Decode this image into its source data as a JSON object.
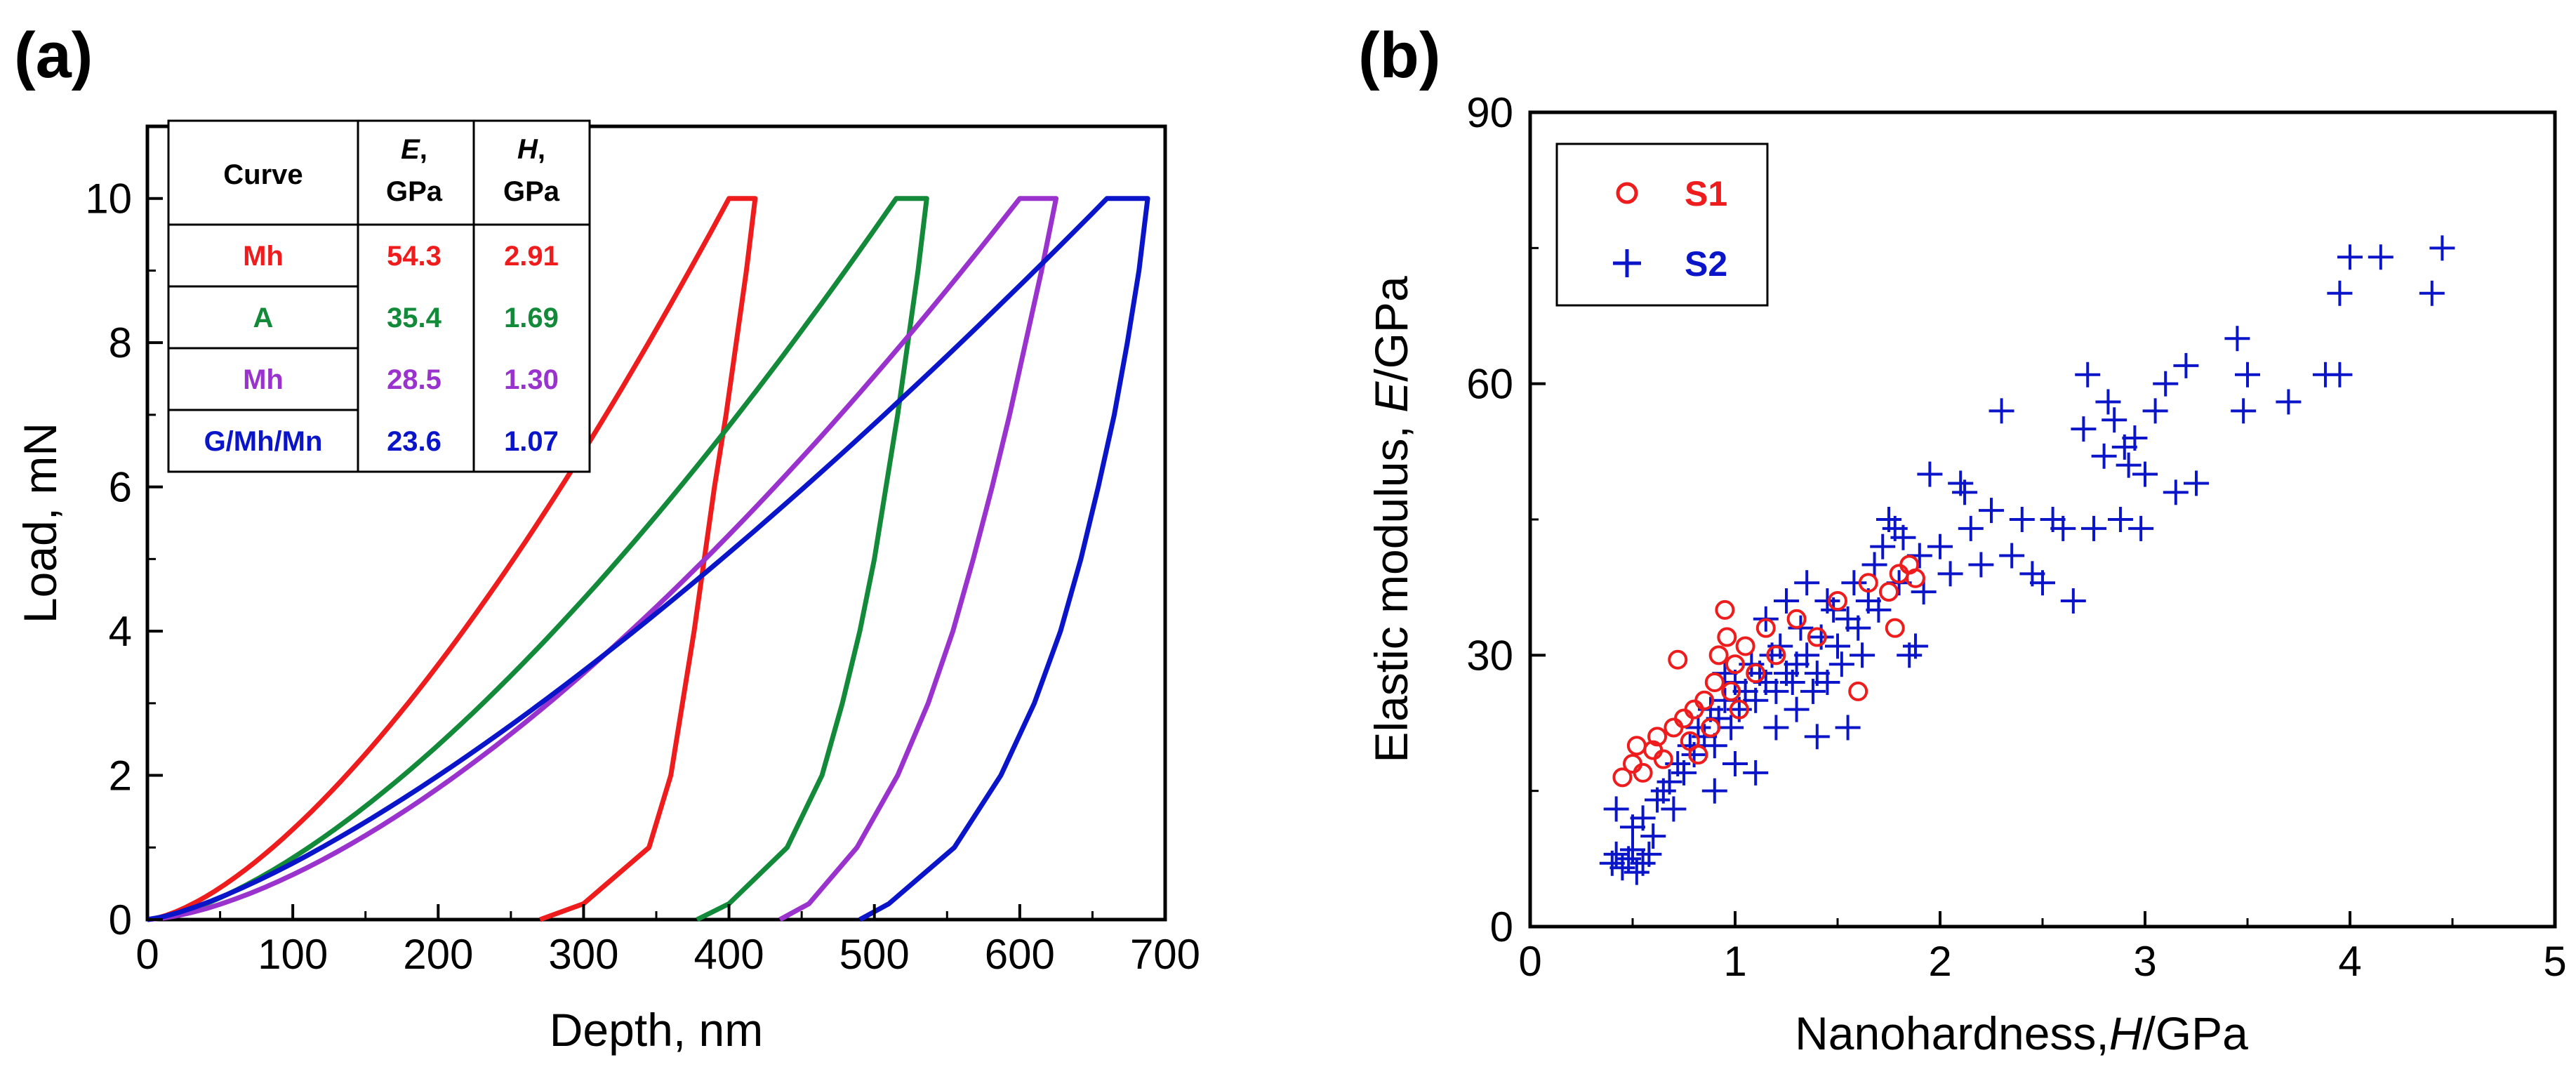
{
  "chart_data": [
    {
      "panel": "(a)",
      "type": "line",
      "title": "",
      "xlabel": "Depth, nm",
      "ylabel": "Load, mN",
      "xlim": [
        0,
        700
      ],
      "ylim": [
        0,
        11
      ],
      "xticks": [
        "0",
        "100",
        "200",
        "300",
        "400",
        "500",
        "600",
        "700"
      ],
      "yticks": [
        "0",
        "2",
        "4",
        "6",
        "8",
        "10"
      ],
      "grid": false,
      "legend_location": "top-left",
      "table": {
        "headers": {
          "curve": "Curve",
          "e_var": "E",
          "e_unit": ", GPa",
          "h_var": "H",
          "h_unit": ", GPa"
        },
        "rows": [
          {
            "curve": "Mh",
            "E": "54.3",
            "H": "2.91",
            "color": "#ee1c1c"
          },
          {
            "curve": "A",
            "E": "35.4",
            "H": "1.69",
            "color": "#138a3a"
          },
          {
            "curve": "Mh",
            "E": "28.5",
            "H": "1.30",
            "color": "#9a32cd"
          },
          {
            "curve": "G/Mh/Mn",
            "E": "23.6",
            "H": "1.07",
            "color": "#0a14c8"
          }
        ]
      },
      "series": [
        {
          "name": "Mh",
          "color": "#ee1c1c",
          "loading": {
            "x_max": 400,
            "y_max": 10,
            "exponent": 1.5
          },
          "hold": [
            400,
            418
          ],
          "unloading": [
            [
              418,
              10
            ],
            [
              412,
              9
            ],
            [
              405,
              8
            ],
            [
              398,
              7
            ],
            [
              390,
              6
            ],
            [
              383,
              5
            ],
            [
              376,
              4
            ],
            [
              368,
              3
            ],
            [
              360,
              2
            ],
            [
              345,
              1
            ],
            [
              300,
              0.22
            ],
            [
              270,
              0
            ]
          ]
        },
        {
          "name": "A",
          "color": "#138a3a",
          "loading": {
            "x_max": 515,
            "y_max": 10,
            "exponent": 1.5
          },
          "hold": [
            515,
            536
          ],
          "unloading": [
            [
              536,
              10
            ],
            [
              530,
              9
            ],
            [
              523,
              8
            ],
            [
              516,
              7
            ],
            [
              508,
              6
            ],
            [
              500,
              5
            ],
            [
              490,
              4
            ],
            [
              478,
              3
            ],
            [
              464,
              2
            ],
            [
              440,
              1
            ],
            [
              400,
              0.22
            ],
            [
              378,
              0
            ]
          ]
        },
        {
          "name": "Mh",
          "color": "#9a32cd",
          "loading": {
            "x_max": 600,
            "y_max": 10,
            "exponent": 1.55
          },
          "hold": [
            600,
            625
          ],
          "unloading": [
            [
              625,
              10
            ],
            [
              615,
              9
            ],
            [
              604,
              8
            ],
            [
              593,
              7
            ],
            [
              581,
              6
            ],
            [
              568,
              5
            ],
            [
              554,
              4
            ],
            [
              537,
              3
            ],
            [
              516,
              2
            ],
            [
              488,
              1
            ],
            [
              455,
              0.22
            ],
            [
              435,
              0
            ]
          ]
        },
        {
          "name": "G/Mh/Mn",
          "color": "#0a14c8",
          "loading": {
            "x_max": 660,
            "y_max": 10,
            "exponent": 1.35
          },
          "hold": [
            660,
            688
          ],
          "unloading": [
            [
              688,
              10
            ],
            [
              682,
              9
            ],
            [
              674,
              8
            ],
            [
              665,
              7
            ],
            [
              654,
              6
            ],
            [
              642,
              5
            ],
            [
              628,
              4
            ],
            [
              610,
              3
            ],
            [
              587,
              2
            ],
            [
              555,
              1
            ],
            [
              510,
              0.22
            ],
            [
              490,
              0
            ]
          ]
        }
      ]
    },
    {
      "panel": "(b)",
      "type": "scatter",
      "title": "",
      "xlabel_prefix": "Nanohardness,",
      "xlabel_var": "H",
      "xlabel_unit": "/GPa",
      "ylabel_prefix": "Elastic modulus, ",
      "ylabel_var": "E",
      "ylabel_unit": "/GPa",
      "xlim": [
        0,
        5
      ],
      "ylim": [
        0,
        90
      ],
      "xticks": [
        "0",
        "1",
        "2",
        "3",
        "4",
        "5"
      ],
      "yticks": [
        "0",
        "30",
        "60",
        "90"
      ],
      "grid": false,
      "legend_location": "top-left",
      "legend": [
        {
          "name": "S1",
          "marker": "circle",
          "color": "#ee1c1c"
        },
        {
          "name": "S2",
          "marker": "plus",
          "color": "#0a14c8"
        }
      ],
      "series": [
        {
          "name": "S1",
          "marker": "circle",
          "color": "#ee1c1c",
          "points": [
            [
              0.45,
              16.5
            ],
            [
              0.5,
              18
            ],
            [
              0.52,
              20
            ],
            [
              0.55,
              17
            ],
            [
              0.6,
              19.5
            ],
            [
              0.62,
              21
            ],
            [
              0.65,
              18.5
            ],
            [
              0.7,
              22
            ],
            [
              0.72,
              29.5
            ],
            [
              0.75,
              23
            ],
            [
              0.78,
              20.5
            ],
            [
              0.8,
              24
            ],
            [
              0.82,
              19
            ],
            [
              0.85,
              25
            ],
            [
              0.88,
              22
            ],
            [
              0.9,
              27
            ],
            [
              0.92,
              30
            ],
            [
              0.95,
              35
            ],
            [
              0.96,
              32
            ],
            [
              0.98,
              26
            ],
            [
              1.0,
              29
            ],
            [
              1.02,
              24
            ],
            [
              1.05,
              31
            ],
            [
              1.1,
              28
            ],
            [
              1.15,
              33
            ],
            [
              1.2,
              30
            ],
            [
              1.3,
              34
            ],
            [
              1.4,
              32
            ],
            [
              1.5,
              36
            ],
            [
              1.6,
              26
            ],
            [
              1.65,
              38
            ],
            [
              1.75,
              37
            ],
            [
              1.8,
              39
            ],
            [
              1.85,
              40
            ],
            [
              1.88,
              38.5
            ],
            [
              1.78,
              33
            ]
          ]
        },
        {
          "name": "S2",
          "marker": "plus",
          "color": "#0a14c8",
          "points": [
            [
              0.4,
              7
            ],
            [
              0.42,
              8
            ],
            [
              0.45,
              6.5
            ],
            [
              0.48,
              7.5
            ],
            [
              0.5,
              8.5
            ],
            [
              0.52,
              6
            ],
            [
              0.55,
              7
            ],
            [
              0.58,
              8
            ],
            [
              0.42,
              13
            ],
            [
              0.5,
              11
            ],
            [
              0.55,
              12
            ],
            [
              0.6,
              10
            ],
            [
              0.62,
              14
            ],
            [
              0.65,
              15
            ],
            [
              0.68,
              16
            ],
            [
              0.7,
              13
            ],
            [
              0.72,
              18
            ],
            [
              0.75,
              17
            ],
            [
              0.78,
              20
            ],
            [
              0.8,
              19
            ],
            [
              0.82,
              22
            ],
            [
              0.85,
              21
            ],
            [
              0.88,
              24
            ],
            [
              0.9,
              20
            ],
            [
              0.92,
              23
            ],
            [
              0.95,
              25
            ],
            [
              0.98,
              22
            ],
            [
              1.0,
              27
            ],
            [
              1.02,
              24
            ],
            [
              1.05,
              26
            ],
            [
              1.08,
              29
            ],
            [
              1.1,
              25
            ],
            [
              1.12,
              28
            ],
            [
              1.15,
              27
            ],
            [
              1.18,
              30
            ],
            [
              1.2,
              26
            ],
            [
              1.22,
              31
            ],
            [
              1.25,
              28
            ],
            [
              1.28,
              27
            ],
            [
              1.3,
              29
            ],
            [
              1.32,
              33
            ],
            [
              1.35,
              30
            ],
            [
              1.38,
              26
            ],
            [
              1.4,
              28
            ],
            [
              1.42,
              32
            ],
            [
              1.45,
              27
            ],
            [
              1.48,
              35
            ],
            [
              1.5,
              31
            ],
            [
              1.52,
              29
            ],
            [
              1.55,
              34
            ],
            [
              1.58,
              38
            ],
            [
              1.6,
              33
            ],
            [
              1.62,
              30
            ],
            [
              1.65,
              36
            ],
            [
              1.68,
              40
            ],
            [
              1.7,
              35
            ],
            [
              1.72,
              42
            ],
            [
              1.75,
              45
            ],
            [
              1.78,
              44
            ],
            [
              1.8,
              38
            ],
            [
              1.82,
              43
            ],
            [
              1.85,
              30
            ],
            [
              1.88,
              31
            ],
            [
              1.9,
              41
            ],
            [
              1.92,
              37
            ],
            [
              1.95,
              50
            ],
            [
              2.0,
              42
            ],
            [
              2.05,
              39
            ],
            [
              2.1,
              49
            ],
            [
              2.12,
              48
            ],
            [
              2.15,
              44
            ],
            [
              2.2,
              40
            ],
            [
              2.25,
              46
            ],
            [
              2.3,
              57
            ],
            [
              2.35,
              41
            ],
            [
              2.4,
              45
            ],
            [
              2.45,
              39
            ],
            [
              2.5,
              38
            ],
            [
              2.55,
              45
            ],
            [
              2.6,
              44
            ],
            [
              2.65,
              36
            ],
            [
              2.7,
              55
            ],
            [
              2.72,
              61
            ],
            [
              2.75,
              44
            ],
            [
              2.8,
              52
            ],
            [
              2.82,
              58
            ],
            [
              2.85,
              56
            ],
            [
              2.88,
              45
            ],
            [
              2.9,
              53
            ],
            [
              2.92,
              51
            ],
            [
              2.95,
              54
            ],
            [
              2.98,
              44
            ],
            [
              3.0,
              50
            ],
            [
              3.05,
              57
            ],
            [
              3.1,
              60
            ],
            [
              3.15,
              48
            ],
            [
              3.2,
              62
            ],
            [
              3.25,
              49
            ],
            [
              3.45,
              65
            ],
            [
              3.48,
              57
            ],
            [
              3.5,
              61
            ],
            [
              3.7,
              58
            ],
            [
              3.88,
              61
            ],
            [
              3.95,
              61
            ],
            [
              3.95,
              70
            ],
            [
              4.0,
              74
            ],
            [
              4.15,
              74
            ],
            [
              4.4,
              70
            ],
            [
              4.45,
              75
            ],
            [
              1.0,
              18
            ],
            [
              1.1,
              17
            ],
            [
              1.2,
              22
            ],
            [
              1.3,
              24
            ],
            [
              1.4,
              21
            ],
            [
              1.55,
              22
            ],
            [
              1.35,
              38
            ],
            [
              1.45,
              36
            ],
            [
              1.15,
              34
            ],
            [
              1.25,
              36
            ],
            [
              0.9,
              15
            ],
            [
              0.95,
              28
            ]
          ]
        }
      ]
    }
  ]
}
